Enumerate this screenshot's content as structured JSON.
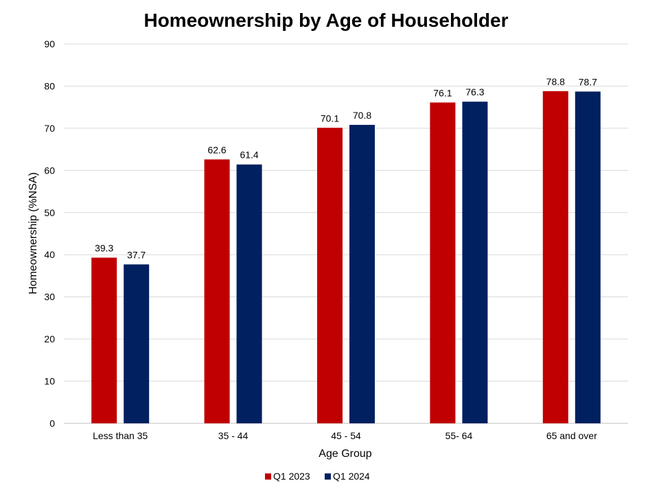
{
  "chart_data": {
    "type": "bar",
    "title": "Homeownership by Age of Householder",
    "xlabel": "Age Group",
    "ylabel": "Homeownership (%NSA)",
    "ylim": [
      0,
      90
    ],
    "yticks": [
      0,
      10,
      20,
      30,
      40,
      50,
      60,
      70,
      80,
      90
    ],
    "categories": [
      "Less than 35",
      "35 - 44",
      "45 - 54",
      "55- 64",
      "65 and over"
    ],
    "series": [
      {
        "name": "Q1 2023",
        "color": "#C00000",
        "values": [
          39.3,
          62.6,
          70.1,
          76.1,
          78.8
        ]
      },
      {
        "name": "Q1 2024",
        "color": "#002060",
        "values": [
          37.7,
          61.4,
          70.8,
          76.3,
          78.7
        ]
      }
    ],
    "grid": true,
    "legend_position": "bottom"
  }
}
